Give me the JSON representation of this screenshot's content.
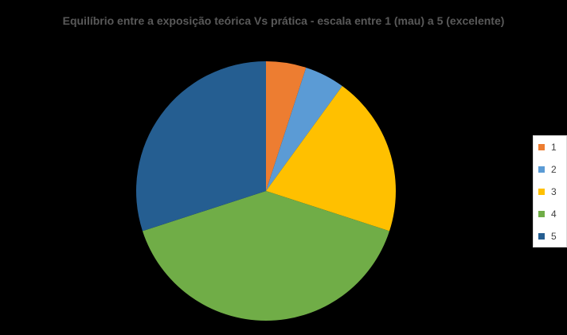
{
  "chart_data": {
    "type": "pie",
    "title": "Equilíbrio entre a exposição teórica Vs prática - escala entre 1 (mau) a 5 (excelente)",
    "categories": [
      "1",
      "2",
      "3",
      "4",
      "5"
    ],
    "values": [
      5,
      5,
      20,
      40,
      30
    ],
    "colors": [
      "#ED7D31",
      "#5B9BD5",
      "#FFC000",
      "#70AD47",
      "#255E91"
    ],
    "legend_position": "right"
  }
}
